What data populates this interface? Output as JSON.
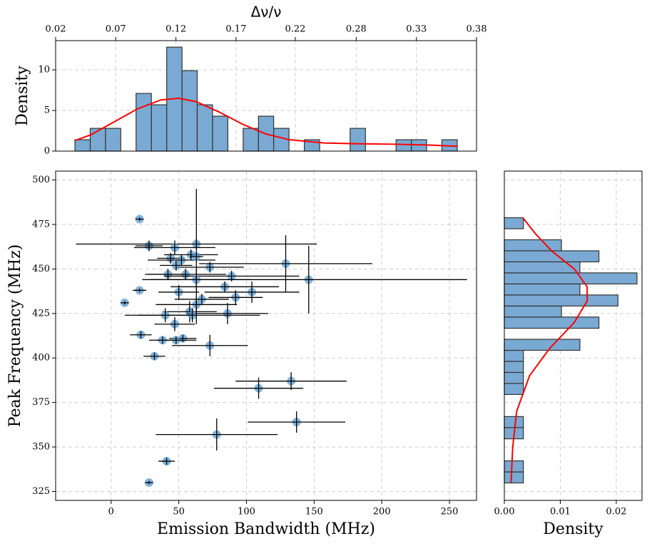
{
  "chart_data": [
    {
      "type": "histogram",
      "orientation": "vertical",
      "xlabel": "Δν/ν",
      "ylabel": "Density",
      "bins": [
        0.0365,
        0.0496,
        0.0627,
        0.0757,
        0.0888,
        0.1019,
        0.115,
        0.1281,
        0.1411,
        0.1542,
        0.1673,
        0.1804,
        0.1935,
        0.2065,
        0.2196,
        0.2327,
        0.2458,
        0.2589,
        0.2719,
        0.285,
        0.2981,
        0.3112,
        0.3243,
        0.3373,
        0.3504,
        0.3635
      ],
      "values": [
        1.4,
        2.8,
        2.8,
        0,
        7.1,
        5.7,
        12.8,
        9.9,
        5.7,
        4.3,
        0,
        2.8,
        4.3,
        2.8,
        0,
        1.4,
        0,
        0,
        2.8,
        0,
        0,
        1.4,
        1.4,
        0,
        1.4
      ],
      "color": "#7aaad3",
      "curve": {
        "color": "#ff0000",
        "x": [
          0.0365,
          0.05,
          0.07,
          0.09,
          0.11,
          0.125,
          0.14,
          0.16,
          0.18,
          0.2,
          0.22,
          0.25,
          0.28,
          0.31,
          0.34,
          0.3635
        ],
        "values": [
          1.3,
          2.0,
          3.6,
          5.2,
          6.3,
          6.5,
          6.1,
          4.8,
          3.3,
          2.1,
          1.4,
          1.0,
          0.9,
          0.85,
          0.75,
          0.6
        ]
      },
      "xlim": [
        0.02,
        0.38
      ],
      "xticks": [
        0.02,
        {
          "value": 0.0714,
          "label": "0.07"
        },
        {
          "value": 0.1229,
          "label": "0.12"
        },
        {
          "value": 0.1743,
          "label": "0.17"
        },
        {
          "value": 0.225,
          "label": "0.22"
        },
        {
          "value": 0.2771,
          "label": "0.28"
        },
        {
          "value": 0.3286,
          "label": "0.33"
        },
        0.38
      ],
      "ylim": [
        0,
        13.6
      ],
      "yticks": [
        0,
        5,
        10
      ],
      "grid": true
    },
    {
      "type": "scatter",
      "xlabel": "Emission Bandwidth (MHz)",
      "ylabel": "Peak Frequency (MHz)",
      "x": [
        21,
        28,
        63,
        47,
        44,
        59,
        52,
        73,
        129,
        48,
        42,
        55,
        89,
        146,
        63,
        84,
        104,
        92,
        50,
        67,
        63,
        10,
        21,
        58,
        86,
        40,
        60,
        47,
        63,
        22,
        73,
        38,
        53,
        48,
        32,
        133,
        109,
        78,
        137,
        41,
        28
      ],
      "values": [
        478,
        463,
        464,
        462,
        456,
        458,
        455,
        451,
        453,
        452,
        447,
        447,
        446,
        444,
        444,
        440,
        437,
        434,
        437,
        433,
        430,
        431,
        438,
        426,
        425,
        424,
        424,
        419,
        457,
        413,
        407,
        410,
        411,
        410,
        401,
        387,
        383,
        357,
        364,
        342,
        330
      ],
      "xerr": [
        3,
        10,
        89,
        30,
        10,
        20,
        25,
        25,
        64,
        12,
        15,
        30,
        50,
        117,
        40,
        40,
        35,
        20,
        15,
        20,
        30,
        3,
        5,
        20,
        30,
        20,
        50,
        15,
        5,
        8,
        28,
        10,
        10,
        15,
        8,
        41,
        33,
        45,
        36,
        6,
        3
      ],
      "yerr": [
        1,
        3,
        3,
        4,
        3,
        3,
        3,
        3,
        16,
        3,
        3,
        3,
        3,
        19,
        6,
        3,
        6,
        4,
        4,
        3,
        5,
        1,
        1,
        6,
        6,
        4,
        4,
        4,
        38,
        2,
        6,
        2,
        2,
        2,
        2,
        5,
        6,
        9,
        6,
        2,
        1
      ],
      "color": "#5b9bd0",
      "xlim": [
        -41,
        270
      ],
      "xticks": [
        0,
        50,
        100,
        150,
        200,
        250
      ],
      "ylim": [
        320,
        505
      ],
      "yticks": [
        325,
        350,
        375,
        400,
        425,
        450,
        475,
        500
      ],
      "grid": true
    },
    {
      "type": "histogram",
      "orientation": "horizontal",
      "xlabel": "Density",
      "bins": [
        329.8,
        336.0,
        342.2,
        348.4,
        354.6,
        360.9,
        367.1,
        373.3,
        379.5,
        385.7,
        391.9,
        398.1,
        404.3,
        410.5,
        416.7,
        423.0,
        429.2,
        435.4,
        441.6,
        447.8,
        454.0,
        460.2,
        466.4,
        472.6,
        478.8
      ],
      "values": [
        0.0034,
        0.0034,
        0,
        0,
        0.0034,
        0.0034,
        0,
        0,
        0.0034,
        0.0034,
        0.0034,
        0.0034,
        0.0135,
        0,
        0.0169,
        0.0102,
        0.0203,
        0.0135,
        0.0237,
        0.0135,
        0.0169,
        0.0102,
        0,
        0.0034
      ],
      "color": "#7aaad3",
      "curve": {
        "color": "#ff0000",
        "x": [
          330,
          350,
          370,
          390,
          405,
          420,
          432,
          440,
          450,
          460,
          470,
          478.8
        ],
        "values": [
          0.0012,
          0.0015,
          0.0022,
          0.0045,
          0.008,
          0.0125,
          0.0148,
          0.0148,
          0.0125,
          0.0085,
          0.0055,
          0.0033
        ]
      },
      "xlim": [
        0,
        0.0246
      ],
      "xticks": [
        {
          "value": 0,
          "label": "0.00"
        },
        0.01,
        0.02
      ],
      "ylim": [
        320,
        505
      ],
      "grid": true
    }
  ]
}
